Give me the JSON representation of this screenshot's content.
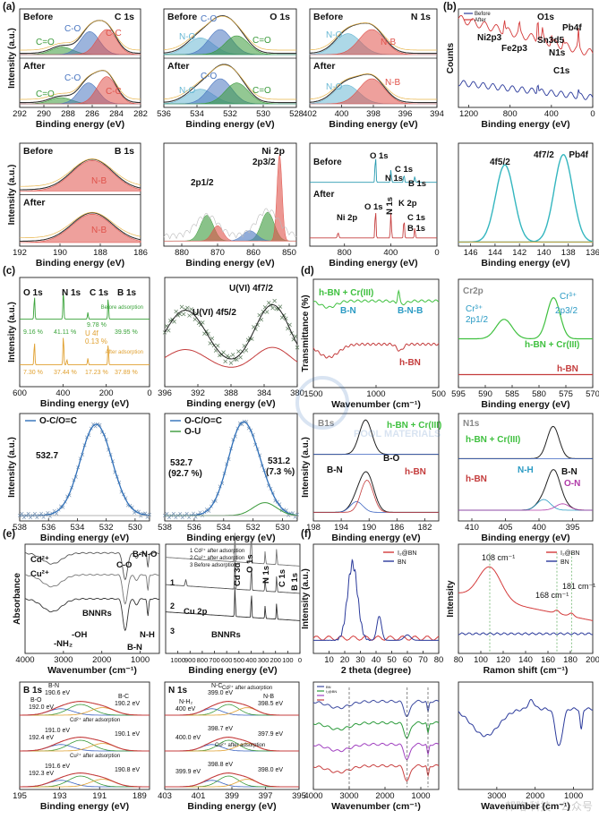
{
  "panel_labels": [
    "(a)",
    "(b)",
    "(c)",
    "(d)",
    "(e)",
    "(f)"
  ],
  "watermark": {
    "center_text": "POOL MATERIALS",
    "bottom_right_text": "邦略 科技 · 公众号"
  },
  "chart_data": [
    {
      "id": "a1",
      "type": "line",
      "title": "C 1s",
      "xlabel": "Binding energy (eV)",
      "ylabel": "Intensity (a.u.)",
      "xlim": [
        292,
        282
      ],
      "xticks": [
        292,
        290,
        288,
        286,
        284,
        282
      ],
      "stack": [
        {
          "label": "Before",
          "peaks": [
            {
              "c": 288.5,
              "h": 0.18,
              "w": 0.9,
              "color": "#3b9a3b",
              "name": "C=O"
            },
            {
              "c": 286.2,
              "h": 0.55,
              "w": 0.8,
              "color": "#4a76c0",
              "name": "C-O"
            },
            {
              "c": 284.8,
              "h": 0.6,
              "w": 0.8,
              "color": "#e0524a",
              "name": "C-C"
            }
          ]
        },
        {
          "label": "After",
          "peaks": [
            {
              "c": 288.6,
              "h": 0.15,
              "w": 0.9,
              "color": "#3b9a3b",
              "name": "C=O"
            },
            {
              "c": 286.3,
              "h": 0.5,
              "w": 0.8,
              "color": "#4a76c0",
              "name": "C-O"
            },
            {
              "c": 284.8,
              "h": 0.65,
              "w": 0.8,
              "color": "#e0524a",
              "name": "C-C"
            }
          ]
        }
      ],
      "annotations": [
        "C-O",
        "C-C",
        "C=O"
      ]
    },
    {
      "id": "a2",
      "type": "line",
      "title": "O 1s",
      "xlabel": "Binding energy (eV)",
      "ylabel": "",
      "xlim": [
        536,
        528
      ],
      "xticks": [
        536,
        534,
        532,
        530,
        528
      ],
      "stack": [
        {
          "label": "Before",
          "peaks": [
            {
              "c": 533.8,
              "h": 0.4,
              "w": 0.8,
              "color": "#69b8d4",
              "name": "N-O"
            },
            {
              "c": 532.6,
              "h": 0.6,
              "w": 0.7,
              "color": "#4a76c0",
              "name": "C-O"
            },
            {
              "c": 531.6,
              "h": 0.45,
              "w": 0.7,
              "color": "#3b9a3b",
              "name": "C=O"
            }
          ]
        },
        {
          "label": "After",
          "peaks": [
            {
              "c": 533.8,
              "h": 0.35,
              "w": 0.8,
              "color": "#69b8d4",
              "name": "N-O"
            },
            {
              "c": 532.6,
              "h": 0.6,
              "w": 0.7,
              "color": "#4a76c0",
              "name": "C-O"
            },
            {
              "c": 531.6,
              "h": 0.5,
              "w": 0.7,
              "color": "#3b9a3b",
              "name": "C=O"
            }
          ]
        }
      ],
      "annotations": [
        "C-O",
        "N-O",
        "C=O"
      ]
    },
    {
      "id": "a3",
      "type": "line",
      "title": "N 1s",
      "xlabel": "Binding energy (eV)",
      "ylabel": "",
      "xlim": [
        402,
        394
      ],
      "xticks": [
        402,
        400,
        398,
        396,
        394
      ],
      "stack": [
        {
          "label": "Before",
          "peaks": [
            {
              "c": 399.6,
              "h": 0.5,
              "w": 0.8,
              "color": "#69b8d4",
              "name": "N-O"
            },
            {
              "c": 398.1,
              "h": 0.6,
              "w": 0.8,
              "color": "#e0524a",
              "name": "N-B"
            }
          ]
        },
        {
          "label": "After",
          "peaks": [
            {
              "c": 399.7,
              "h": 0.45,
              "w": 0.8,
              "color": "#69b8d4",
              "name": "N-O"
            },
            {
              "c": 398.1,
              "h": 0.6,
              "w": 0.8,
              "color": "#e0524a",
              "name": "N-B"
            }
          ]
        }
      ],
      "annotations": [
        "N-O",
        "N-B"
      ]
    },
    {
      "id": "b1",
      "type": "line",
      "title": "",
      "xlabel": "Binding energy (eV)",
      "ylabel": "Counts",
      "xlim": [
        1300,
        0
      ],
      "xticks": [
        1200,
        800,
        400,
        0
      ],
      "legend": [
        "Before",
        "After"
      ],
      "annotations": [
        "O1s",
        "Pb4f",
        "Ni2p3",
        "Fe2p3",
        "Sn3d5",
        "N1s",
        "C1s"
      ],
      "series": [
        {
          "name": "Before",
          "color": "#2b3a9b"
        },
        {
          "name": "After",
          "color": "#d43a3a"
        }
      ]
    },
    {
      "id": "a4",
      "type": "line",
      "title": "B 1s",
      "xlabel": "Binding energy (eV)",
      "ylabel": "Intensity (a.u.)",
      "xlim": [
        192,
        186
      ],
      "xticks": [
        192,
        190,
        188,
        186
      ],
      "stack": [
        {
          "label": "Before",
          "peaks": [
            {
              "c": 188.4,
              "h": 0.7,
              "w": 1.0,
              "color": "#e0524a",
              "name": "N-B"
            }
          ]
        },
        {
          "label": "After",
          "peaks": [
            {
              "c": 188.4,
              "h": 0.65,
              "w": 1.0,
              "color": "#e0524a",
              "name": "N-B"
            }
          ]
        }
      ],
      "annotations": [
        "N-B"
      ]
    },
    {
      "id": "a5",
      "type": "line",
      "title": "Ni 2p",
      "xlabel": "Binding energy (eV)",
      "ylabel": "",
      "xlim": [
        885,
        848
      ],
      "xticks": [
        880,
        870,
        860,
        850
      ],
      "annotations": [
        "2p1/2",
        "2p3/2"
      ]
    },
    {
      "id": "a6",
      "type": "line",
      "title": "",
      "xlabel": "Binding energy (eV)",
      "ylabel": "",
      "xlim": [
        1100,
        0
      ],
      "xticks": [
        800,
        400,
        0
      ],
      "annotations": [
        "O 1s",
        "C 1s",
        "N 1s",
        "B 1s",
        "Before",
        "After",
        "O 1s",
        "N 1s",
        "K 2p",
        "C 1s",
        "B 1s",
        "Ni 2p"
      ]
    },
    {
      "id": "b2",
      "type": "line",
      "title": "Pb4f",
      "xlabel": "Binding energy (eV)",
      "ylabel": "",
      "xlim": [
        147,
        136
      ],
      "xticks": [
        146,
        144,
        142,
        140,
        138,
        136
      ],
      "peaks": [
        {
          "c": 143.2,
          "h": 0.75,
          "w": 0.75,
          "name": "4f5/2"
        },
        {
          "c": 138.4,
          "h": 0.85,
          "w": 0.75,
          "name": "4f7/2"
        }
      ],
      "annotations": [
        "4f5/2",
        "4f7/2",
        "Pb4f"
      ]
    },
    {
      "id": "c1",
      "type": "line",
      "title": "",
      "xlabel": "Binding energy (eV)",
      "ylabel": "Intensity (a.u.)",
      "xlim": [
        600,
        0
      ],
      "xticks": [
        600,
        400,
        200,
        0
      ],
      "annotations": [
        "O 1s",
        "N 1s",
        "C 1s",
        "B 1s",
        "Before adsorption",
        "After adsorption",
        "U 4f",
        "0.13 %",
        "9.16 %",
        "41.11 %",
        "9.78 %",
        "39.95 %",
        "7.30 %",
        "37.44 %",
        "17.23 %",
        "37.89 %"
      ]
    },
    {
      "id": "c2",
      "type": "line",
      "title": "",
      "xlabel": "Binding energy (eV)",
      "ylabel": "",
      "xlim": [
        396,
        380
      ],
      "xticks": [
        396,
        392,
        388,
        384,
        380
      ],
      "annotations": [
        "U(VI) 4f7/2",
        "U(VI) 4f5/2"
      ]
    },
    {
      "id": "d1",
      "type": "line",
      "title": "",
      "xlabel": "Wavenumber (cm⁻¹)",
      "ylabel": "Transmittance (%)",
      "xlim": [
        1500,
        500
      ],
      "xticks": [
        1500,
        1000,
        500
      ],
      "annotations": [
        "h-BN + Cr(III)",
        "B-N",
        "B-N-B",
        "h-BN"
      ]
    },
    {
      "id": "d2",
      "type": "line",
      "title": "Cr2p",
      "xlabel": "Binding energy (eV)",
      "ylabel": "",
      "xlim": [
        595,
        570
      ],
      "xticks": [
        595,
        590,
        585,
        580,
        575,
        570
      ],
      "annotations": [
        "Cr³⁺ 2p1/2",
        "Cr³⁺ 2p3/2",
        "h-BN + Cr(III)",
        "h-BN"
      ]
    },
    {
      "id": "c3",
      "type": "line",
      "title": "",
      "xlabel": "Binding energy (eV)",
      "ylabel": "Intensity (a.u.)",
      "xlim": [
        538,
        529
      ],
      "xticks": [
        538,
        536,
        534,
        532,
        530
      ],
      "legend": [
        "O-C/O=C"
      ],
      "peaks": [
        {
          "c": 532.7,
          "h": 0.85,
          "w": 1.1,
          "name": "O-C/O=C"
        }
      ],
      "annotations": [
        "532.7"
      ]
    },
    {
      "id": "c4",
      "type": "line",
      "title": "",
      "xlabel": "Binding energy (eV)",
      "ylabel": "",
      "xlim": [
        538,
        529
      ],
      "xticks": [
        538,
        536,
        534,
        532,
        530
      ],
      "legend": [
        "O-C/O=C",
        "O-U"
      ],
      "peaks": [
        {
          "c": 532.7,
          "h": 0.85,
          "w": 1.0,
          "name": "O-C/O=C"
        },
        {
          "c": 531.2,
          "h": 0.12,
          "w": 0.8,
          "name": "O-U"
        }
      ],
      "annotations": [
        "532.7",
        "(92.7 %)",
        "531.2",
        "(7.3 %)"
      ]
    },
    {
      "id": "d3",
      "type": "line",
      "title": "B1s",
      "xlabel": "Binding energy (eV)",
      "ylabel": "Intensity (a.u.)",
      "xlim": [
        198,
        180
      ],
      "xticks": [
        198,
        194,
        190,
        186,
        182
      ],
      "annotations": [
        "h-BN + Cr(III)",
        "B-N",
        "B-O",
        "h-BN"
      ]
    },
    {
      "id": "d4",
      "type": "line",
      "title": "N1s",
      "xlabel": "Binding energy (eV)",
      "ylabel": "",
      "xlim": [
        412,
        392
      ],
      "xticks": [
        410,
        405,
        400,
        395
      ],
      "annotations": [
        "h-BN + Cr(III)",
        "h-BN",
        "N-H",
        "B-N",
        "O-N"
      ]
    },
    {
      "id": "e1",
      "type": "line",
      "title": "",
      "xlabel": "Wavenumber (cm⁻¹)",
      "ylabel": "Absorbance",
      "xlim": [
        4000,
        500
      ],
      "xticks": [
        4000,
        3000,
        2000,
        1000
      ],
      "annotations": [
        "Cd²⁺",
        "Cu²⁺",
        "BNNRs",
        "-NH₂",
        "-OH",
        "C-O",
        "B-N-O",
        "B-N",
        "N-H"
      ]
    },
    {
      "id": "e2",
      "type": "line",
      "title": "",
      "xlabel": "Binding energy (eV)",
      "ylabel": "",
      "xlim": [
        1100,
        0
      ],
      "xticks": [
        1000,
        900,
        800,
        700,
        600,
        500,
        400,
        300,
        200,
        100,
        0
      ],
      "legend": [
        "1 Cd²⁺ after adsorption",
        "2 Cu²⁺ after adsorption",
        "3 Before adsorption"
      ],
      "annotations": [
        "1",
        "2",
        "3",
        "Cu 2p",
        "BNNRs",
        "Cd 3d",
        "O 1s",
        "N 1s",
        "C 1s",
        "B 1s"
      ]
    },
    {
      "id": "f1",
      "type": "line",
      "title": "",
      "xlabel": "2 theta (degree)",
      "ylabel": "Intensity (a.u.)",
      "xlim": [
        0,
        80
      ],
      "xticks": [
        10,
        20,
        30,
        40,
        50,
        60,
        70,
        80
      ],
      "legend": [
        "I₂@BN",
        "BN"
      ],
      "series": [
        {
          "name": "I₂@BN",
          "color": "#d43a3a"
        },
        {
          "name": "BN",
          "color": "#2b3a9b"
        }
      ]
    },
    {
      "id": "f2",
      "type": "line",
      "title": "",
      "xlabel": "Ramon shift (cm⁻¹)",
      "ylabel": "Intensity",
      "xlim": [
        80,
        200
      ],
      "xticks": [
        80,
        100,
        120,
        140,
        160,
        180,
        200
      ],
      "legend": [
        "I₂@BN",
        "BN"
      ],
      "annotations": [
        "108 cm⁻¹",
        "168 cm⁻¹",
        "181 cm⁻¹"
      ]
    },
    {
      "id": "e3",
      "type": "line",
      "title": "B 1s",
      "xlabel": "Binding energy (eV)",
      "ylabel": "",
      "xlim": [
        195,
        188.5
      ],
      "xticks": [
        195,
        193,
        191,
        189
      ],
      "stack": [
        {
          "label": "Cd²⁺ after adsorption",
          "peaks": [
            {
              "c": 192.0,
              "h": 0.3,
              "w": 0.8,
              "name": "B-O"
            },
            {
              "c": 190.6,
              "h": 0.5,
              "w": 0.8,
              "name": "B-N"
            },
            {
              "c": 190.2,
              "h": 0.3,
              "w": 0.7,
              "name": "B-C"
            }
          ]
        },
        {
          "label": "Cu²⁺ after adsorption",
          "peaks": [
            {
              "c": 192.4,
              "h": 0.3,
              "w": 0.8,
              "name": "B-O"
            },
            {
              "c": 191.0,
              "h": 0.5,
              "w": 0.8,
              "name": "B-N"
            },
            {
              "c": 190.1,
              "h": 0.3,
              "w": 0.7,
              "name": "B-C"
            }
          ]
        },
        {
          "label": "",
          "peaks": [
            {
              "c": 192.3,
              "h": 0.3,
              "w": 0.8,
              "name": "B-O"
            },
            {
              "c": 191.6,
              "h": 0.5,
              "w": 0.8,
              "name": "B-N"
            },
            {
              "c": 190.8,
              "h": 0.3,
              "w": 0.7,
              "name": "B-C"
            }
          ]
        }
      ],
      "annotations": [
        "B-N",
        "190.6 eV",
        "B-O",
        "192.0 eV",
        "B-C",
        "190.2 eV",
        "Cd²⁺ after adsorption",
        "191.0 eV",
        "192.4 eV",
        "190.1 eV",
        "Cu²⁺ after adsorption",
        "191.6 eV",
        "192.3 eV",
        "190.8 eV"
      ]
    },
    {
      "id": "e4",
      "type": "line",
      "title": "N 1s",
      "xlabel": "Binding energy (eV)",
      "ylabel": "",
      "xlim": [
        403,
        395
      ],
      "xticks": [
        403,
        401,
        399,
        397,
        395
      ],
      "annotations": [
        "N-C",
        "399.0 eV",
        "N-H₂",
        "400 eV",
        "N-B",
        "398.5 eV",
        "Cd²⁺ after adsorption",
        "398.7 eV",
        "400.0 eV",
        "397.9 eV",
        "Cu²⁺ after adsorption",
        "398.8 eV",
        "399.9 eV",
        "398.0 eV"
      ]
    },
    {
      "id": "f3",
      "type": "line",
      "title": "",
      "xlabel": "Wavenumber (cm⁻¹)",
      "ylabel": "",
      "xlim": [
        4000,
        500
      ],
      "xticks": [
        4000,
        3000,
        2000,
        1000
      ],
      "legend": [
        "BN",
        "I₂@BN"
      ],
      "series": [
        {
          "name": "BN",
          "color": "#3c4aa0"
        },
        {
          "name": "I₂@BN",
          "color": "#2a9a3a"
        },
        {
          "name": "",
          "color": "#a040c0"
        },
        {
          "name": "",
          "color": "#c84040"
        }
      ]
    },
    {
      "id": "f4",
      "type": "line",
      "title": "",
      "xlabel": "Wavenumber (cm⁻¹)",
      "ylabel": "",
      "xlim": [
        4000,
        500
      ],
      "xticks": [
        3000,
        2000,
        1000
      ],
      "series": [
        {
          "name": "",
          "color": "#2b3a9b"
        }
      ]
    }
  ]
}
